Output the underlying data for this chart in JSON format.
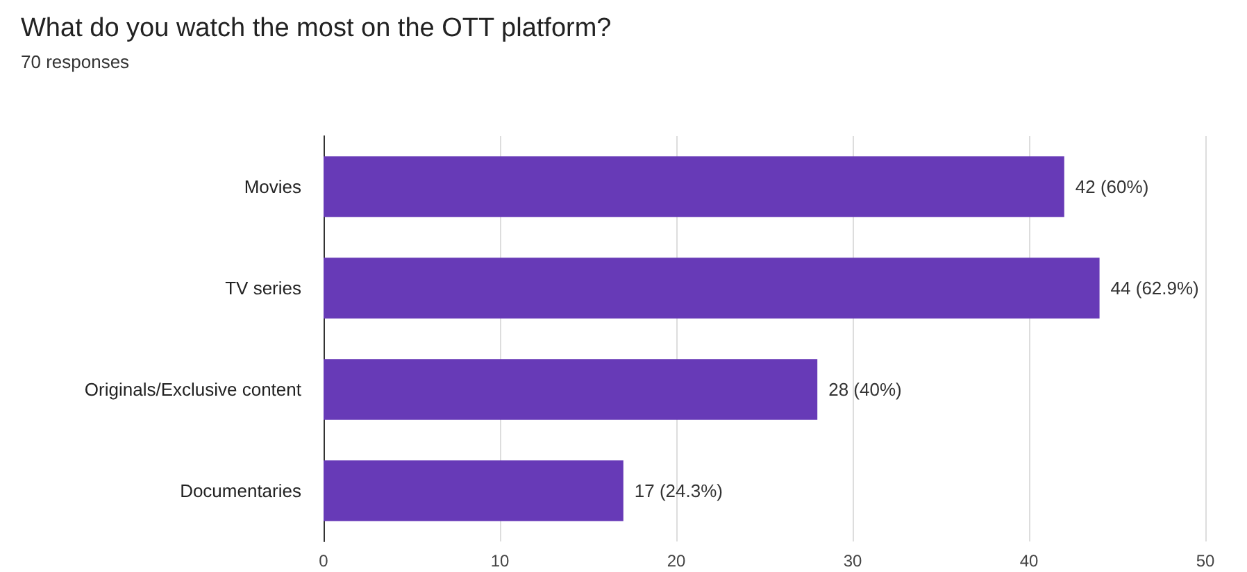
{
  "chart_data": {
    "type": "bar",
    "orientation": "horizontal",
    "title": "What do you watch the most on the OTT platform?",
    "subtitle": "70 responses",
    "categories": [
      "Movies",
      "TV series",
      "Originals/Exclusive content",
      "Documentaries"
    ],
    "values": [
      42,
      44,
      28,
      17
    ],
    "value_labels": [
      "42 (60%)",
      "44 (62.9%)",
      "28 (40%)",
      "17 (24.3%)"
    ],
    "color": "#673ab7",
    "xlim": [
      0,
      50
    ],
    "xticks": [
      0,
      10,
      20,
      30,
      40,
      50
    ],
    "grid": "x"
  }
}
